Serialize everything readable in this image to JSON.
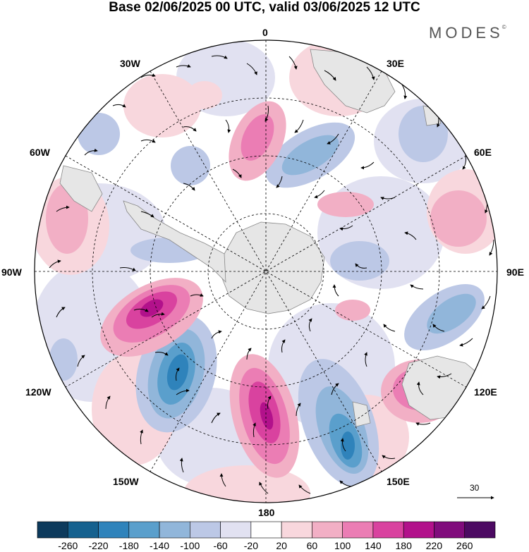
{
  "title": "Base 02/06/2025 00 UTC, valid 03/06/2025 12 UTC",
  "brand": "MODES",
  "brand_mark": "©",
  "longitude_labels": {
    "lon_0": "0",
    "lon_30e": "30E",
    "lon_60e": "60E",
    "lon_90e": "90E",
    "lon_120e": "120E",
    "lon_150e": "150E",
    "lon_180": "180",
    "lon_150w": "150W",
    "lon_120w": "120W",
    "lon_90w": "90W",
    "lon_60w": "60W",
    "lon_30w": "30W"
  },
  "vector_scale_label": "30",
  "colorbar": {
    "labels": [
      "-260",
      "-220",
      "-180",
      "-140",
      "-100",
      "-60",
      "-20",
      "20",
      "60",
      "100",
      "140",
      "180",
      "220",
      "260"
    ],
    "colors": [
      "#0d3a5c",
      "#15618f",
      "#2f83bb",
      "#5a9fcc",
      "#91b6da",
      "#bcc8e6",
      "#e1e1f1",
      "#ffffff",
      "#f8d7dd",
      "#f2afc5",
      "#eb7db4",
      "#d9429f",
      "#b2118b",
      "#800c7c",
      "#4c0a62"
    ]
  },
  "colors": {
    "land": "#e6e6e6",
    "coast": "#888888",
    "grid": "#000000"
  }
}
